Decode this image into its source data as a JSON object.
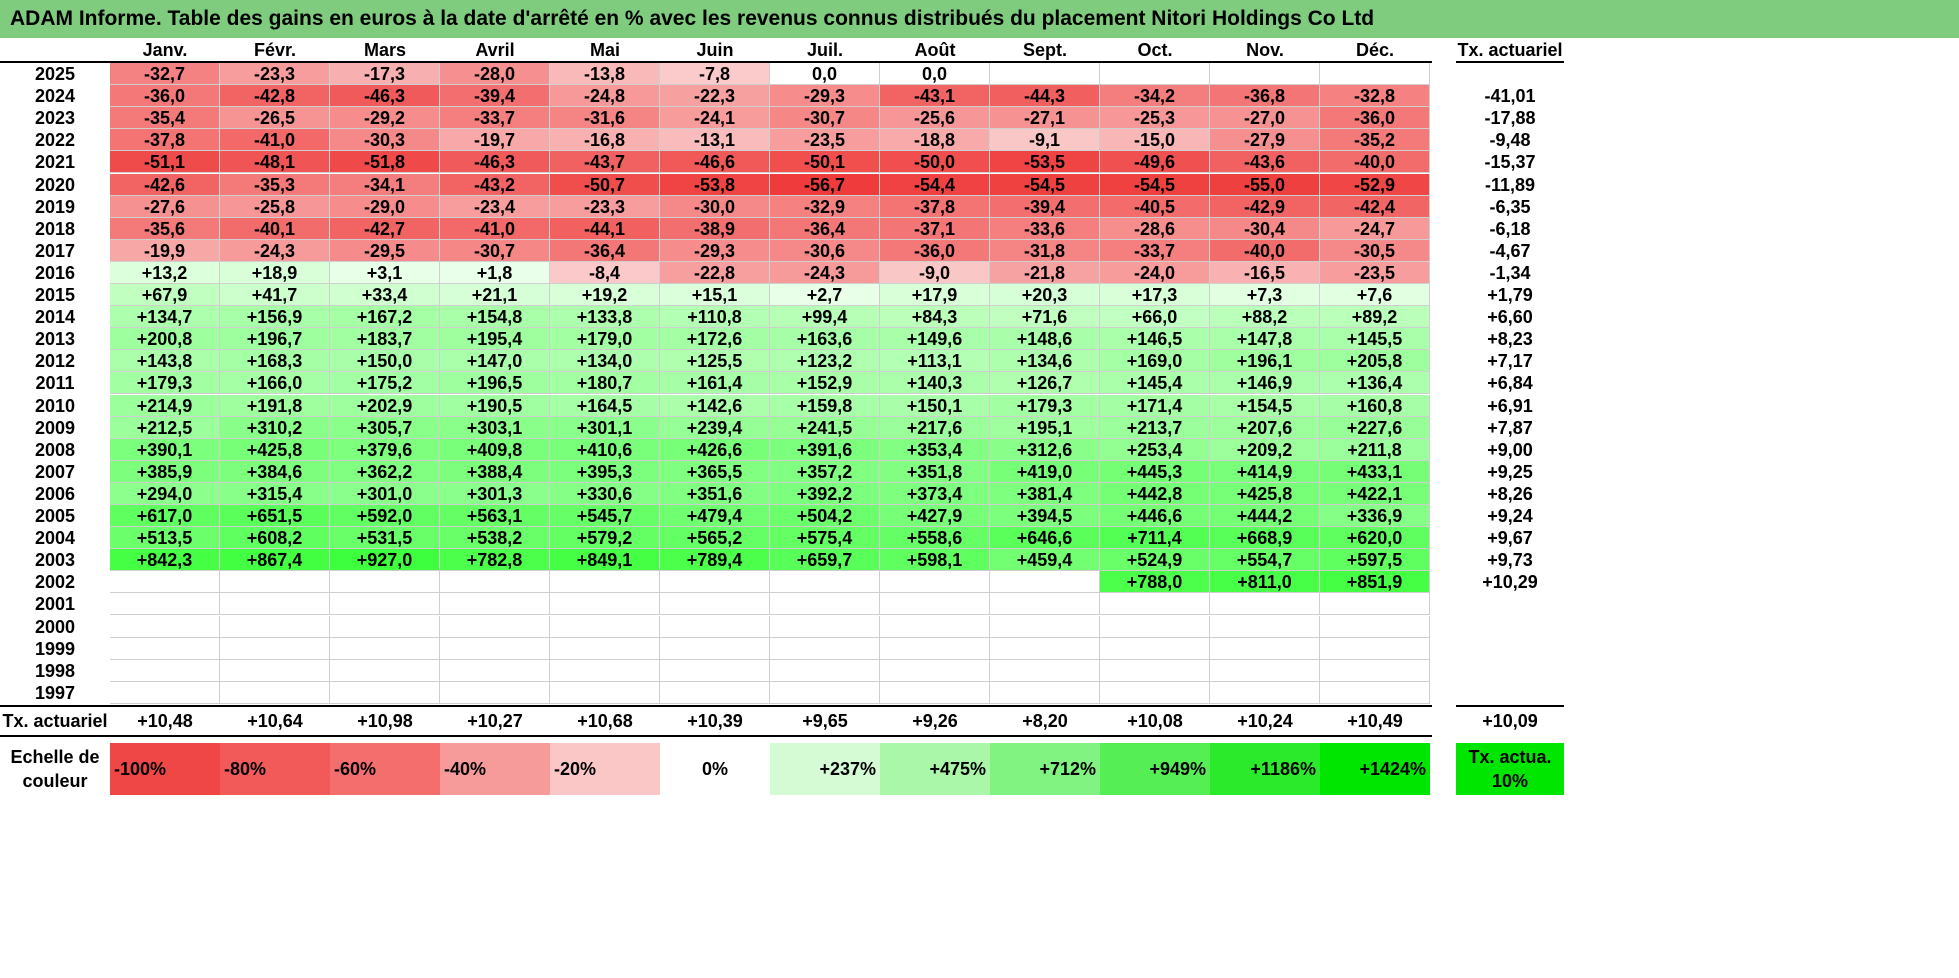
{
  "title": "ADAM Informe. Table des gains en euros à la date d'arrêté en % avec les revenus connus distribués du placement Nitori Holdings Co Ltd",
  "chart_data": {
    "type": "table",
    "months": [
      "Janv.",
      "Févr.",
      "Mars",
      "Avril",
      "Mai",
      "Juin",
      "Juil.",
      "Août",
      "Sept.",
      "Oct.",
      "Nov.",
      "Déc."
    ],
    "rate_header": "Tx. actuariel",
    "rows": [
      {
        "year": "2025",
        "values": [
          "-32,7",
          "-23,3",
          "-17,3",
          "-28,0",
          "-13,8",
          "-7,8",
          "0,0",
          "0,0",
          "",
          "",
          "",
          ""
        ],
        "rate": ""
      },
      {
        "year": "2024",
        "values": [
          "-36,0",
          "-42,8",
          "-46,3",
          "-39,4",
          "-24,8",
          "-22,3",
          "-29,3",
          "-43,1",
          "-44,3",
          "-34,2",
          "-36,8",
          "-32,8"
        ],
        "rate": "-41,01"
      },
      {
        "year": "2023",
        "values": [
          "-35,4",
          "-26,5",
          "-29,2",
          "-33,7",
          "-31,6",
          "-24,1",
          "-30,7",
          "-25,6",
          "-27,1",
          "-25,3",
          "-27,0",
          "-36,0"
        ],
        "rate": "-17,88"
      },
      {
        "year": "2022",
        "values": [
          "-37,8",
          "-41,0",
          "-30,3",
          "-19,7",
          "-16,8",
          "-13,1",
          "-23,5",
          "-18,8",
          "-9,1",
          "-15,0",
          "-27,9",
          "-35,2"
        ],
        "rate": "-9,48"
      },
      {
        "year": "2021",
        "values": [
          "-51,1",
          "-48,1",
          "-51,8",
          "-46,3",
          "-43,7",
          "-46,6",
          "-50,1",
          "-50,0",
          "-53,5",
          "-49,6",
          "-43,6",
          "-40,0"
        ],
        "rate": "-15,37"
      },
      {
        "year": "2020",
        "values": [
          "-42,6",
          "-35,3",
          "-34,1",
          "-43,2",
          "-50,7",
          "-53,8",
          "-56,7",
          "-54,4",
          "-54,5",
          "-54,5",
          "-55,0",
          "-52,9"
        ],
        "rate": "-11,89"
      },
      {
        "year": "2019",
        "values": [
          "-27,6",
          "-25,8",
          "-29,0",
          "-23,4",
          "-23,3",
          "-30,0",
          "-32,9",
          "-37,8",
          "-39,4",
          "-40,5",
          "-42,9",
          "-42,4"
        ],
        "rate": "-6,35"
      },
      {
        "year": "2018",
        "values": [
          "-35,6",
          "-40,1",
          "-42,7",
          "-41,0",
          "-44,1",
          "-38,9",
          "-36,4",
          "-37,1",
          "-33,6",
          "-28,6",
          "-30,4",
          "-24,7"
        ],
        "rate": "-6,18"
      },
      {
        "year": "2017",
        "values": [
          "-19,9",
          "-24,3",
          "-29,5",
          "-30,7",
          "-36,4",
          "-29,3",
          "-30,6",
          "-36,0",
          "-31,8",
          "-33,7",
          "-40,0",
          "-30,5"
        ],
        "rate": "-4,67"
      },
      {
        "year": "2016",
        "values": [
          "+13,2",
          "+18,9",
          "+3,1",
          "+1,8",
          "-8,4",
          "-22,8",
          "-24,3",
          "-9,0",
          "-21,8",
          "-24,0",
          "-16,5",
          "-23,5"
        ],
        "rate": "-1,34"
      },
      {
        "year": "2015",
        "values": [
          "+67,9",
          "+41,7",
          "+33,4",
          "+21,1",
          "+19,2",
          "+15,1",
          "+2,7",
          "+17,9",
          "+20,3",
          "+17,3",
          "+7,3",
          "+7,6"
        ],
        "rate": "+1,79"
      },
      {
        "year": "2014",
        "values": [
          "+134,7",
          "+156,9",
          "+167,2",
          "+154,8",
          "+133,8",
          "+110,8",
          "+99,4",
          "+84,3",
          "+71,6",
          "+66,0",
          "+88,2",
          "+89,2"
        ],
        "rate": "+6,60"
      },
      {
        "year": "2013",
        "values": [
          "+200,8",
          "+196,7",
          "+183,7",
          "+195,4",
          "+179,0",
          "+172,6",
          "+163,6",
          "+149,6",
          "+148,6",
          "+146,5",
          "+147,8",
          "+145,5"
        ],
        "rate": "+8,23"
      },
      {
        "year": "2012",
        "values": [
          "+143,8",
          "+168,3",
          "+150,0",
          "+147,0",
          "+134,0",
          "+125,5",
          "+123,2",
          "+113,1",
          "+134,6",
          "+169,0",
          "+196,1",
          "+205,8"
        ],
        "rate": "+7,17"
      },
      {
        "year": "2011",
        "values": [
          "+179,3",
          "+166,0",
          "+175,2",
          "+196,5",
          "+180,7",
          "+161,4",
          "+152,9",
          "+140,3",
          "+126,7",
          "+145,4",
          "+146,9",
          "+136,4"
        ],
        "rate": "+6,84"
      },
      {
        "year": "2010",
        "values": [
          "+214,9",
          "+191,8",
          "+202,9",
          "+190,5",
          "+164,5",
          "+142,6",
          "+159,8",
          "+150,1",
          "+179,3",
          "+171,4",
          "+154,5",
          "+160,8"
        ],
        "rate": "+6,91"
      },
      {
        "year": "2009",
        "values": [
          "+212,5",
          "+310,2",
          "+305,7",
          "+303,1",
          "+301,1",
          "+239,4",
          "+241,5",
          "+217,6",
          "+195,1",
          "+213,7",
          "+207,6",
          "+227,6"
        ],
        "rate": "+7,87"
      },
      {
        "year": "2008",
        "values": [
          "+390,1",
          "+425,8",
          "+379,6",
          "+409,8",
          "+410,6",
          "+426,6",
          "+391,6",
          "+353,4",
          "+312,6",
          "+253,4",
          "+209,2",
          "+211,8"
        ],
        "rate": "+9,00"
      },
      {
        "year": "2007",
        "values": [
          "+385,9",
          "+384,6",
          "+362,2",
          "+388,4",
          "+395,3",
          "+365,5",
          "+357,2",
          "+351,8",
          "+419,0",
          "+445,3",
          "+414,9",
          "+433,1"
        ],
        "rate": "+9,25"
      },
      {
        "year": "2006",
        "values": [
          "+294,0",
          "+315,4",
          "+301,0",
          "+301,3",
          "+330,6",
          "+351,6",
          "+392,2",
          "+373,4",
          "+381,4",
          "+442,8",
          "+425,8",
          "+422,1"
        ],
        "rate": "+8,26"
      },
      {
        "year": "2005",
        "values": [
          "+617,0",
          "+651,5",
          "+592,0",
          "+563,1",
          "+545,7",
          "+479,4",
          "+504,2",
          "+427,9",
          "+394,5",
          "+446,6",
          "+444,2",
          "+336,9"
        ],
        "rate": "+9,24"
      },
      {
        "year": "2004",
        "values": [
          "+513,5",
          "+608,2",
          "+531,5",
          "+538,2",
          "+579,2",
          "+565,2",
          "+575,4",
          "+558,6",
          "+646,6",
          "+711,4",
          "+668,9",
          "+620,0"
        ],
        "rate": "+9,67"
      },
      {
        "year": "2003",
        "values": [
          "+842,3",
          "+867,4",
          "+927,0",
          "+782,8",
          "+849,1",
          "+789,4",
          "+659,7",
          "+598,1",
          "+459,4",
          "+524,9",
          "+554,7",
          "+597,5"
        ],
        "rate": "+9,73"
      },
      {
        "year": "2002",
        "values": [
          "",
          "",
          "",
          "",
          "",
          "",
          "",
          "",
          "",
          "+788,0",
          "+811,0",
          "+851,9"
        ],
        "rate": "+10,29"
      },
      {
        "year": "2001",
        "values": [
          "",
          "",
          "",
          "",
          "",
          "",
          "",
          "",
          "",
          "",
          "",
          ""
        ],
        "rate": ""
      },
      {
        "year": "2000",
        "values": [
          "",
          "",
          "",
          "",
          "",
          "",
          "",
          "",
          "",
          "",
          "",
          ""
        ],
        "rate": ""
      },
      {
        "year": "1999",
        "values": [
          "",
          "",
          "",
          "",
          "",
          "",
          "",
          "",
          "",
          "",
          "",
          ""
        ],
        "rate": ""
      },
      {
        "year": "1998",
        "values": [
          "",
          "",
          "",
          "",
          "",
          "",
          "",
          "",
          "",
          "",
          "",
          ""
        ],
        "rate": ""
      },
      {
        "year": "1997",
        "values": [
          "",
          "",
          "",
          "",
          "",
          "",
          "",
          "",
          "",
          "",
          "",
          ""
        ],
        "rate": ""
      }
    ],
    "footer": {
      "label": "Tx. actuariel",
      "values": [
        "+10,48",
        "+10,64",
        "+10,98",
        "+10,27",
        "+10,68",
        "+10,39",
        "+9,65",
        "+9,26",
        "+8,20",
        "+10,08",
        "+10,24",
        "+10,49"
      ],
      "rate": "+10,09"
    },
    "color_scale": {
      "label": "Echelle de couleur",
      "steps": [
        {
          "text": "-100%",
          "color": "#ef4646"
        },
        {
          "text": "-80%",
          "color": "#f25a5a"
        },
        {
          "text": "-60%",
          "color": "#f46e6e"
        },
        {
          "text": "-40%",
          "color": "#f79a9a"
        },
        {
          "text": "-20%",
          "color": "#fbc6c6"
        },
        {
          "text": "0%",
          "color": "#ffffff"
        },
        {
          "text": "+237%",
          "color": "#d5fbd5"
        },
        {
          "text": "+475%",
          "color": "#aaf7aa"
        },
        {
          "text": "+712%",
          "color": "#80f380"
        },
        {
          "text": "+949%",
          "color": "#55ef55"
        },
        {
          "text": "+1186%",
          "color": "#2bea2b"
        },
        {
          "text": "+1424%",
          "color": "#00e600"
        }
      ],
      "rate_label": "Tx. actua. 10%",
      "rate_color": "#00e600"
    },
    "colors": {
      "title_bg": "#7fcc7f",
      "neg_max": "#ef3b3b",
      "pos_max": "#33ff33",
      "neutral": "#ffffff"
    }
  }
}
